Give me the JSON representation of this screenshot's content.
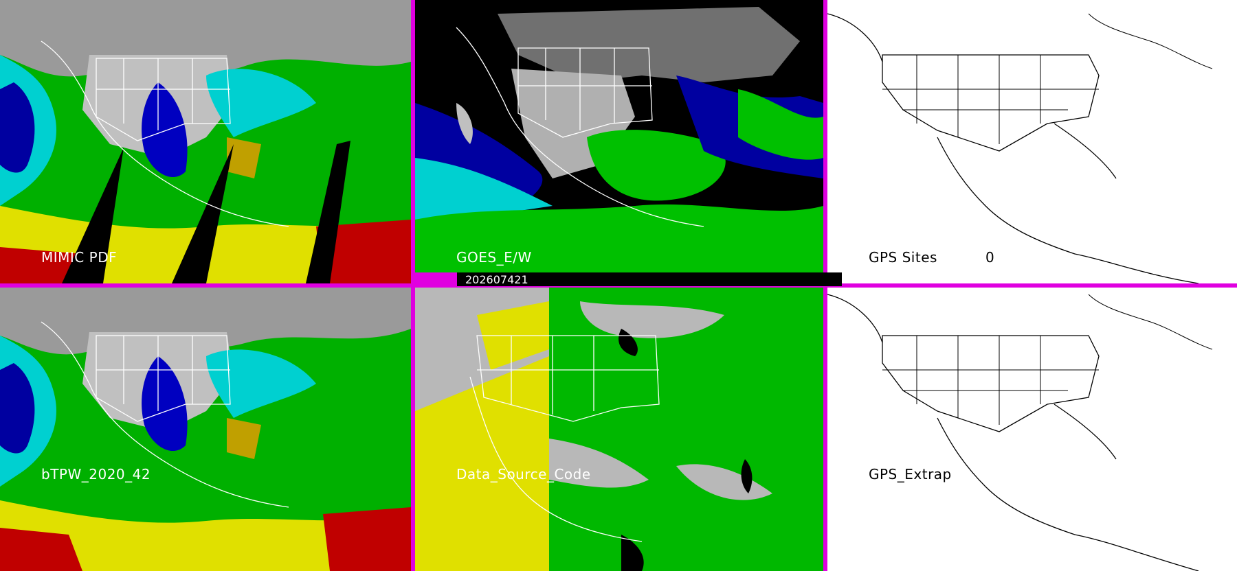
{
  "panels": {
    "mimic_pdf": {
      "label": "MIMIC PDF"
    },
    "goes_ew": {
      "label": "GOES_E/W"
    },
    "gps_sites": {
      "label": "GPS Sites",
      "count": "0"
    },
    "btpw": {
      "label": "bTPW_2020_42"
    },
    "data_source": {
      "label": "Data_Source_Code"
    },
    "gps_extrap": {
      "label": "GPS_Extrap"
    }
  },
  "timestamp": "202607421",
  "colors": {
    "divider": "#e000e0",
    "moist_high": "#d8d800",
    "moist_mid": "#00c800",
    "moist_low": "#00e0e0",
    "dry": "#0000a0",
    "very_high": "#c00000",
    "cloud": "#b8b8b8",
    "map_outline": "#ffffff"
  }
}
